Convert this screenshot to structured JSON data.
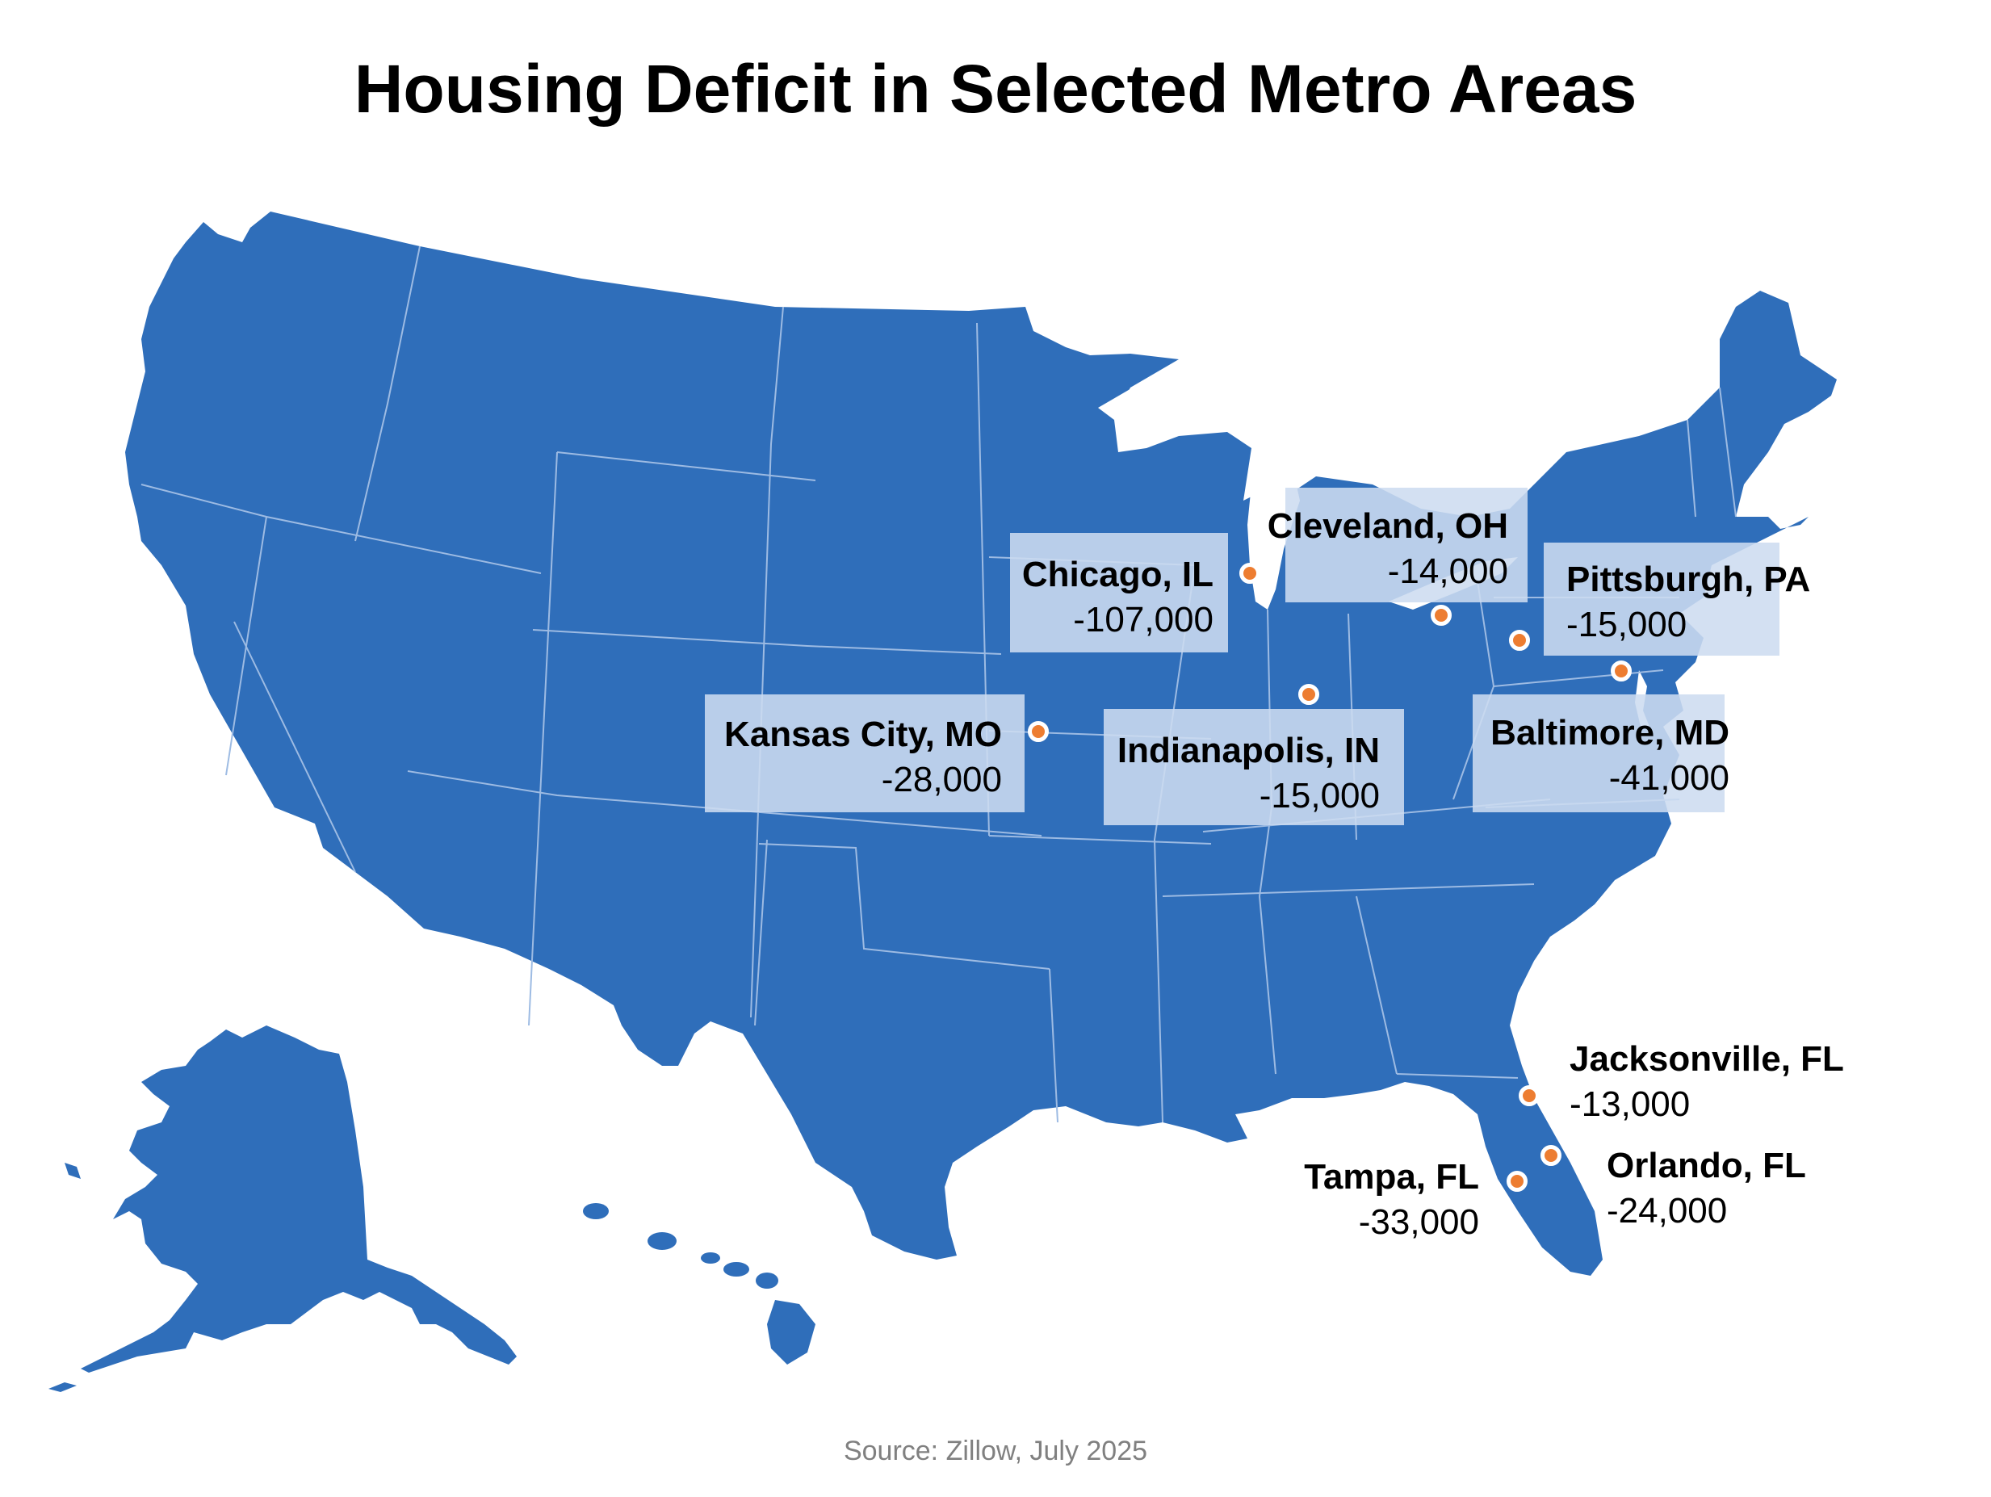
{
  "title": "Housing Deficit in Selected Metro Areas",
  "source": "Source: Zillow, July 2025",
  "colors": {
    "land": "#2F6EBA",
    "borders": "#9DBBE3",
    "marker": "#ED7D31",
    "label_box": "#CDDCF0"
  },
  "metros": [
    {
      "city": "Chicago, IL",
      "value": "-107,000"
    },
    {
      "city": "Cleveland, OH",
      "value": "-14,000"
    },
    {
      "city": "Pittsburgh, PA",
      "value": "-15,000"
    },
    {
      "city": "Kansas City, MO",
      "value": "-28,000"
    },
    {
      "city": "Indianapolis, IN",
      "value": "-15,000"
    },
    {
      "city": "Baltimore, MD",
      "value": "-41,000"
    },
    {
      "city": "Jacksonville, FL",
      "value": "-13,000"
    },
    {
      "city": "Tampa, FL",
      "value": "-33,000"
    },
    {
      "city": "Orlando, FL",
      "value": "-24,000"
    }
  ]
}
